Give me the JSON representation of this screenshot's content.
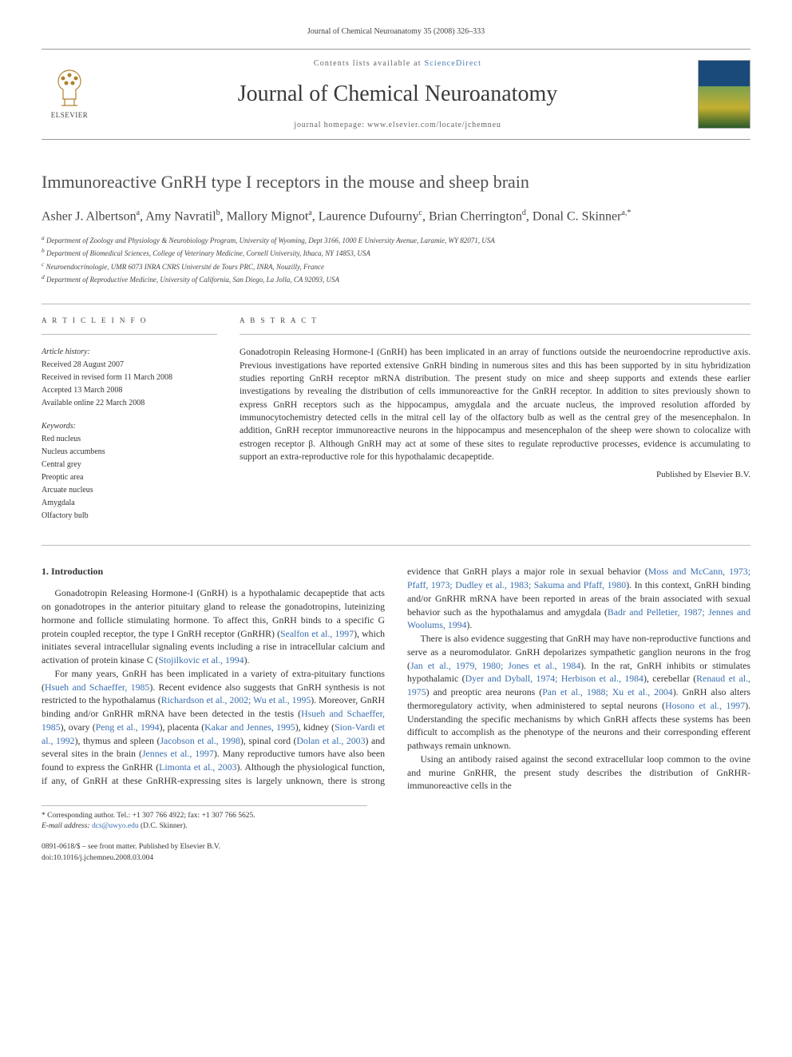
{
  "header": {
    "citation": "Journal of Chemical Neuroanatomy 35 (2008) 326–333",
    "contents_prefix": "Contents lists available at ",
    "contents_link": "ScienceDirect",
    "journal_title": "Journal of Chemical Neuroanatomy",
    "homepage_label": "journal homepage: www.elsevier.com/locate/jchemneu",
    "publisher_name": "ELSEVIER"
  },
  "article": {
    "title": "Immunoreactive GnRH type I receptors in the mouse and sheep brain",
    "authors_html": "Asher J. Albertson<sup>a</sup>, Amy Navratil<sup>b</sup>, Mallory Mignot<sup>a</sup>, Laurence Dufourny<sup>c</sup>, Brian Cherrington<sup>d</sup>, Donal C. Skinner<sup>a,*</sup>",
    "affiliations": [
      "a Department of Zoology and Physiology & Neurobiology Program, University of Wyoming, Dept 3166, 1000 E University Avenue, Laramie, WY 82071, USA",
      "b Department of Biomedical Sciences, College of Veterinary Medicine, Cornell University, Ithaca, NY 14853, USA",
      "c Neuroendocrinologie, UMR 6073 INRA CNRS Université de Tours PRC, INRA, Nouzilly, France",
      "d Department of Reproductive Medicine, University of California, San Diego, La Jolla, CA 92093, USA"
    ]
  },
  "info": {
    "heading": "A R T I C L E   I N F O",
    "history_label": "Article history:",
    "history": [
      "Received 28 August 2007",
      "Received in revised form 11 March 2008",
      "Accepted 13 March 2008",
      "Available online 22 March 2008"
    ],
    "keywords_label": "Keywords:",
    "keywords": [
      "Red nucleus",
      "Nucleus accumbens",
      "Central grey",
      "Preoptic area",
      "Arcuate nucleus",
      "Amygdala",
      "Olfactory bulb"
    ]
  },
  "abstract": {
    "heading": "A B S T R A C T",
    "text": "Gonadotropin Releasing Hormone-I (GnRH) has been implicated in an array of functions outside the neuroendocrine reproductive axis. Previous investigations have reported extensive GnRH binding in numerous sites and this has been supported by in situ hybridization studies reporting GnRH receptor mRNA distribution. The present study on mice and sheep supports and extends these earlier investigations by revealing the distribution of cells immunoreactive for the GnRH receptor. In addition to sites previously shown to express GnRH receptors such as the hippocampus, amygdala and the arcuate nucleus, the improved resolution afforded by immunocytochemistry detected cells in the mitral cell lay of the olfactory bulb as well as the central grey of the mesencephalon. In addition, GnRH receptor immunoreactive neurons in the hippocampus and mesencephalon of the sheep were shown to colocalize with estrogen receptor β. Although GnRH may act at some of these sites to regulate reproductive processes, evidence is accumulating to support an extra-reproductive role for this hypothalamic decapeptide.",
    "publisher": "Published by Elsevier B.V."
  },
  "body": {
    "section1_head": "1. Introduction",
    "p1": "Gonadotropin Releasing Hormone-I (GnRH) is a hypothalamic decapeptide that acts on gonadotropes in the anterior pituitary gland to release the gonadotropins, luteinizing hormone and follicle stimulating hormone. To affect this, GnRH binds to a specific G protein coupled receptor, the type I GnRH receptor (GnRHR) (",
    "p1_ref1": "Sealfon et al., 1997",
    "p1_b": "), which initiates several intracellular signaling events including a rise in intracellular calcium and activation of protein kinase C (",
    "p1_ref2": "Stojilkovic et al., 1994",
    "p1_c": ").",
    "p2": "For many years, GnRH has been implicated in a variety of extra-pituitary functions (",
    "p2_ref1": "Hsueh and Schaeffer, 1985",
    "p2_b": "). Recent evidence also suggests that GnRH synthesis is not restricted to the hypothalamus (",
    "p2_ref2": "Richardson et al., 2002; Wu et al., 1995",
    "p2_c": "). Moreover, GnRH binding and/or GnRHR mRNA have been detected in the testis (",
    "p2_ref3": "Hsueh and Schaeffer, 1985",
    "p2_d": "), ovary (",
    "p2_ref4": "Peng et al., 1994",
    "p2_e": "), placenta (",
    "p2_ref5": "Kakar and Jennes, 1995",
    "p2_f": "), kidney (",
    "p2_ref6": "Sion-Vardi et al., 1992",
    "p2_g": "), thymus and spleen (",
    "p2_ref7": "Jacobson et al., 1998",
    "p2_h": "), spinal cord (",
    "p2_ref8": "Dolan et al., 2003",
    "p2_i": ") and several sites in the brain (",
    "p2_ref9": "Jennes et al., 1997",
    "p2_j": "). Many reproductive tumors have also been found to express the GnRHR (",
    "p2_ref10": "Limonta et al., 2003",
    "p2_k": "). Although the physiological function, if any, of GnRH at these GnRHR-expressing sites is largely unknown, there is strong evidence that GnRH plays a major role in sexual behavior (",
    "p2_ref11": "Moss and McCann, 1973; Pfaff, 1973; Dudley et al., 1983; Sakuma and Pfaff, 1980",
    "p2_l": "). In this context, GnRH binding and/or GnRHR mRNA have been reported in areas of the brain associated with sexual behavior such as the hypothalamus and amygdala (",
    "p2_ref12": "Badr and Pelletier, 1987; Jennes and Woolums, 1994",
    "p2_m": ").",
    "p3": "There is also evidence suggesting that GnRH may have non-reproductive functions and serve as a neuromodulator. GnRH depolarizes sympathetic ganglion neurons in the frog (",
    "p3_ref1": "Jan et al., 1979, 1980; Jones et al., 1984",
    "p3_b": "). In the rat, GnRH inhibits or stimulates hypothalamic (",
    "p3_ref2": "Dyer and Dyball, 1974; Herbison et al., 1984",
    "p3_c": "), cerebellar (",
    "p3_ref3": "Renaud et al., 1975",
    "p3_d": ") and preoptic area neurons (",
    "p3_ref4": "Pan et al., 1988; Xu et al., 2004",
    "p3_e": "). GnRH also alters thermoregulatory activity, when administered to septal neurons (",
    "p3_ref5": "Hosono et al., 1997",
    "p3_f": "). Understanding the specific mechanisms by which GnRH affects these systems has been difficult to accomplish as the phenotype of the neurons and their corresponding efferent pathways remain unknown.",
    "p4": "Using an antibody raised against the second extracellular loop common to the ovine and murine GnRHR, the present study describes the distribution of GnRHR-immunoreactive cells in the"
  },
  "footnotes": {
    "corr": "* Corresponding author. Tel.: +1 307 766 4922; fax: +1 307 766 5625.",
    "email_label": "E-mail address: ",
    "email": "dcs@uwyo.edu",
    "email_tail": " (D.C. Skinner)."
  },
  "footer": {
    "line1": "0891-0618/$ – see front matter. Published by Elsevier B.V.",
    "line2": "doi:10.1016/j.jchemneu.2008.03.004"
  },
  "colors": {
    "link": "#3a6fb0",
    "text": "#333333",
    "rule": "#bbbbbb"
  }
}
